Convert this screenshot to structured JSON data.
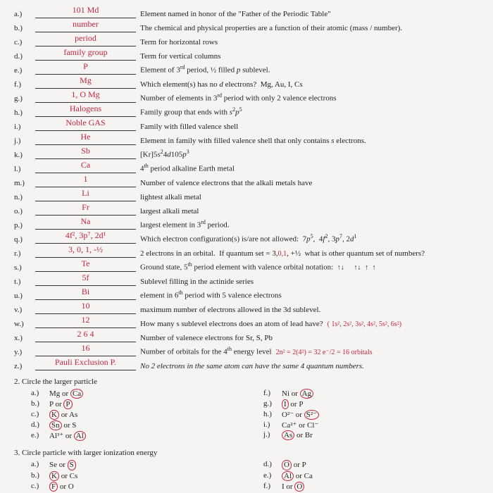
{
  "colors": {
    "ink": "#222",
    "handwriting": "#c0263f",
    "paper": "#f5f4f2"
  },
  "fontsize_body": 11,
  "fontsize_handwriting": 12,
  "q1": [
    {
      "m": "a.)",
      "ans": "101 Md",
      "clue": "Element named in honor of the \"Father of the Periodic Table\""
    },
    {
      "m": "b.)",
      "ans": "number",
      "clue": "The chemical and physical properties are a function of their atomic (mass / number)."
    },
    {
      "m": "c.)",
      "ans": "period",
      "clue": "Term for horizontal rows"
    },
    {
      "m": "d.)",
      "ans": "family group",
      "clue": "Term for vertical columns"
    },
    {
      "m": "e.)",
      "ans": "P",
      "clue_html": "Element of 3<span class='sup'>rd</span> period, ½ filled <span class='ital'>p</span> sublevel."
    },
    {
      "m": "f.)",
      "ans": "Mg",
      "clue_html": "Which element(s) has no <span class='ital'>d</span> electrons?&nbsp; Mg, Au, I, Cs"
    },
    {
      "m": "g.)",
      "ans": "1, O Mg",
      "clue_html": "Number of elements in 3<span class='sup'>rd</span> period with only 2 valence electrons"
    },
    {
      "m": "h.)",
      "ans": "Halogens",
      "clue_html": "Family group that ends with <span class='ital'>s</span><span class='sup'>2</span><span class='ital'>p</span><span class='sup'>5</span>"
    },
    {
      "m": "i.)",
      "ans": "Noble GAS",
      "clue": "Family with filled valence shell"
    },
    {
      "m": "j.)",
      "ans": "He",
      "clue_html": "Element in family with filled valence shell that only contains <span class='ital'>s</span> electrons."
    },
    {
      "m": "k.)",
      "ans": "Sb",
      "clue_html": "[Kr]5<span class='ital'>s</span><span class='sup'>2</span>4<span class='ital'>d</span>10<span class='sup'></span>5<span class='ital'>p</span><span class='sup'>3</span>"
    },
    {
      "m": "l.)",
      "ans": "Ca",
      "clue_html": "4<span class='sup'>th</span> period alkaline Earth metal"
    },
    {
      "m": "m.)",
      "ans": "1",
      "clue": "Number of valence electrons that the alkali metals have"
    },
    {
      "m": "n.)",
      "ans": "Li",
      "clue": "lightest alkali metal"
    },
    {
      "m": "o.)",
      "ans": "Fr",
      "clue": "largest alkali metal"
    },
    {
      "m": "p.)",
      "ans": "Na",
      "clue_html": "largest element in 3<span class='sup'>rd</span> period."
    },
    {
      "m": "q.)",
      "ans": "4f², 3p⁷, 2d¹",
      "clue_html": "Which electron configuration(s) is/are not allowed: &nbsp;7<span class='ital'>p</span><span class='sup'>5</span>, &nbsp;4<span class='ital'>f</span><span class='sup'>2</span>, 3<span class='ital'>p</span><span class='sup'>7</span>, 2<span class='ital'>d</span><span class='sup'>1</span>"
    },
    {
      "m": "r.)",
      "ans": "3, 0, 1, -½",
      "clue_html": "2 electrons in an orbital.&nbsp; If quantum set = 3,<span class='redmark'>0,1</span>, +½&nbsp; what is other quantum set of numbers?"
    },
    {
      "m": "s.)",
      "ans": "Te",
      "clue_html": "Ground state, 5<span class='sup'>th</span> period element with valence orbital notation: &nbsp;<span class='arrows'>↑↓</span>&nbsp;&nbsp;&nbsp;&nbsp;&nbsp;<span class='arrows'>↑↓&nbsp;&nbsp;↑&nbsp;&nbsp;↑</span>"
    },
    {
      "m": "t.)",
      "ans": "5f",
      "clue": "Sublevel filling in the actinide series"
    },
    {
      "m": "u.)",
      "ans": "Bi",
      "clue_html": "element in 6<span class='sup'>th</span> period with 5 valence electrons"
    },
    {
      "m": "v.)",
      "ans": "10",
      "clue": "maximum number of electrons allowed in the 3d sublevel."
    },
    {
      "m": "w.)",
      "ans": "12",
      "clue": "How many s sublevel electrons does an atom of lead have?",
      "tail": "( 1s², 2s², 3s², 4s², 5s², 6s²)"
    },
    {
      "m": "x.)",
      "ans": "2   6   4",
      "clue": "Number of valenece electrons for Sr, S, Pb"
    },
    {
      "m": "y.)",
      "ans": "16",
      "clue_html": "Number of orbitals for the 4<span class='sup'>th</span> energy level",
      "tail": "2n² = 2(4²) = 32 e⁻/2 = 16 orbitals"
    },
    {
      "m": "z.)",
      "ans": "Pauli Exclusion P.",
      "clue_html": "<span class='ital'>No 2 electrons in the same atom can have the same 4 quantum numbers.</span>"
    }
  ],
  "q2": {
    "title": "2.  Circle the larger particle",
    "left": [
      {
        "m": "a.)",
        "t": "Mg or ",
        "circ": "Ca"
      },
      {
        "m": "b.)",
        "t": "P or ",
        "circ": "P"
      },
      {
        "m": "c.)",
        "circ_first": "K",
        "t": " or As"
      },
      {
        "m": "d.)",
        "circ_first": "Sn",
        "t": " or S"
      },
      {
        "m": "e.)",
        "t": "Al³⁺ or ",
        "circ": "Al"
      }
    ],
    "right": [
      {
        "m": "f.)",
        "t": "Ni or ",
        "circ": "Ag"
      },
      {
        "m": "g.)",
        "circ_first": "I",
        "t": " or P"
      },
      {
        "m": "h.)",
        "t": "O²⁻ or ",
        "circ": "S²⁻"
      },
      {
        "m": "i.)",
        "t": "Ca²⁺ or Cl⁻"
      },
      {
        "m": "j.)",
        "circ_first": "As",
        "t": " or Br"
      }
    ]
  },
  "q3": {
    "title": "3.  Circle particle with larger ionization energy",
    "left": [
      {
        "m": "a.)",
        "t": "Se or ",
        "circ": "S"
      },
      {
        "m": "b.)",
        "circ_first": "K",
        "t": " or Cs"
      },
      {
        "m": "c.)",
        "circ_first": "F",
        "t": " or O"
      }
    ],
    "right": [
      {
        "m": "d.)",
        "circ_first": "O",
        "t": " or P"
      },
      {
        "m": "e.)",
        "circ_first": "Al",
        "t": " or Ca"
      },
      {
        "m": "f.)",
        "t": "I or ",
        "circ": "O"
      }
    ]
  }
}
